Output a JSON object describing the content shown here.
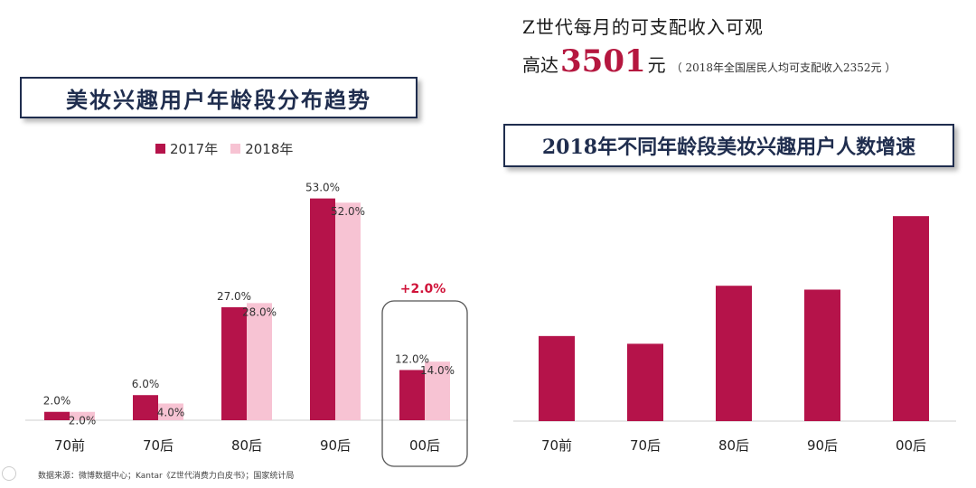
{
  "header": {
    "income_line1": "Z世代每月的可支配收入可观",
    "income_prefix": "高达",
    "income_amount": "3501",
    "income_suffix": "元",
    "income_note": "（ 2018年全国居民人均可支配收入2352元 ）"
  },
  "source_note": "数据来源：微博数据中心；Kantar《Z世代消费力白皮书》；国家统计局",
  "colors": {
    "y2017": "#b5134a",
    "y2018": "#f7c3d3",
    "highlight_text": "#d0143a",
    "title_border": "#1f2d4e"
  },
  "chart_data": [
    {
      "type": "bar",
      "title": "美妆兴趣用户年龄段分布趋势",
      "categories": [
        "70前",
        "70后",
        "80后",
        "90后",
        "00后"
      ],
      "series": [
        {
          "name": "2017年",
          "values": [
            2.0,
            6.0,
            27.0,
            53.0,
            12.0
          ],
          "labels": [
            "2.0%",
            "6.0%",
            "27.0%",
            "53.0%",
            "12.0%"
          ]
        },
        {
          "name": "2018年",
          "values": [
            2.0,
            4.0,
            28.0,
            52.0,
            14.0
          ],
          "labels": [
            "2.0%",
            "4.0%",
            "28.0%",
            "52.0%",
            "14.0%"
          ]
        }
      ],
      "legend_position": "top",
      "highlight": {
        "category": "00后",
        "annotation": "+2.0%"
      }
    },
    {
      "type": "bar",
      "title": "2018年不同年龄段美妆兴趣用户人数增速",
      "categories": [
        "70前",
        "70后",
        "80后",
        "90后",
        "00后"
      ],
      "values": [
        22,
        20,
        35,
        34,
        53
      ],
      "note": "values are relative estimates; no axis or data labels printed"
    }
  ]
}
